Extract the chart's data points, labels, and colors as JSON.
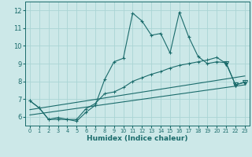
{
  "xlabel": "Humidex (Indice chaleur)",
  "xlim": [
    -0.5,
    23.5
  ],
  "ylim": [
    5.5,
    12.5
  ],
  "xticks": [
    0,
    1,
    2,
    3,
    4,
    5,
    6,
    7,
    8,
    9,
    10,
    11,
    12,
    13,
    14,
    15,
    16,
    17,
    18,
    19,
    20,
    21,
    22,
    23
  ],
  "yticks": [
    6,
    7,
    8,
    9,
    10,
    11,
    12
  ],
  "background_color": "#cce8e8",
  "grid_color": "#aad4d4",
  "line_color": "#1a6b6b",
  "line1_x": [
    0,
    1,
    2,
    3,
    4,
    5,
    6,
    7,
    8,
    9,
    10,
    11,
    12,
    13,
    14,
    15,
    16,
    17,
    18,
    19,
    20,
    21,
    22,
    23
  ],
  "line1_y": [
    6.9,
    6.5,
    5.85,
    5.85,
    5.85,
    5.75,
    6.25,
    6.65,
    8.1,
    9.1,
    9.3,
    11.85,
    11.4,
    10.6,
    10.7,
    9.6,
    11.9,
    10.5,
    9.4,
    9.0,
    9.1,
    9.05,
    7.8,
    7.95
  ],
  "line2_x": [
    0,
    1,
    2,
    3,
    4,
    5,
    6,
    7,
    8,
    9,
    10,
    11,
    12,
    13,
    14,
    15,
    16,
    17,
    18,
    19,
    20,
    21,
    22,
    23
  ],
  "line2_y": [
    6.9,
    6.5,
    5.85,
    5.95,
    5.85,
    5.85,
    6.45,
    6.75,
    7.3,
    7.4,
    7.65,
    8.0,
    8.2,
    8.4,
    8.55,
    8.75,
    8.9,
    9.0,
    9.1,
    9.2,
    9.35,
    9.0,
    7.8,
    7.95
  ],
  "line3_x": [
    0,
    23
  ],
  "line3_y": [
    6.4,
    8.3
  ],
  "line4_x": [
    0,
    23
  ],
  "line4_y": [
    6.1,
    7.8
  ]
}
